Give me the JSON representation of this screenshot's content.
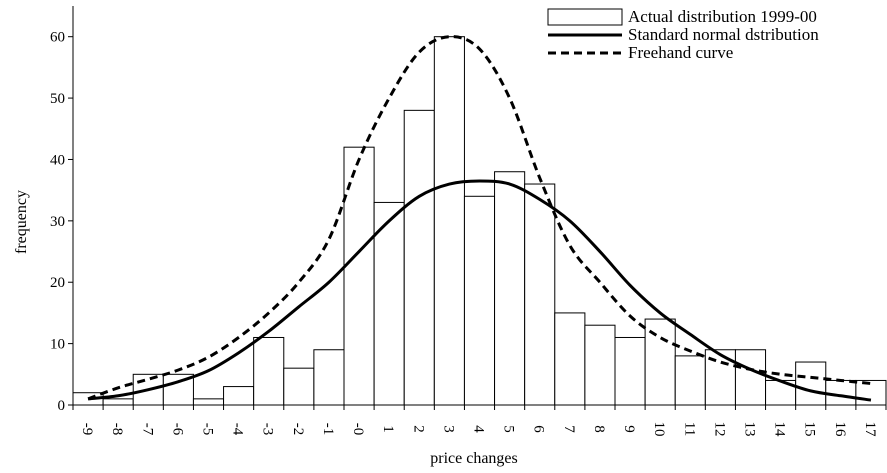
{
  "chart_data": {
    "type": "bar",
    "xlabel": "price changes",
    "ylabel": "frequency",
    "ylim": [
      0,
      65
    ],
    "yticks": [
      0,
      10,
      20,
      30,
      40,
      50,
      60
    ],
    "grid": false,
    "legend_position": "top-right",
    "categories": [
      "-9",
      "-8",
      "-7",
      "-6",
      "-5",
      "-4",
      "-3",
      "-2",
      "-1",
      "-0",
      "1",
      "2",
      "3",
      "4",
      "5",
      "6",
      "7",
      "8",
      "9",
      "10",
      "11",
      "12",
      "13",
      "14",
      "15",
      "16",
      "17"
    ],
    "series": [
      {
        "name": "Actual distribution 1999-00",
        "type": "bar",
        "values": [
          2,
          1,
          5,
          5,
          1,
          3,
          11,
          6,
          9,
          42,
          33,
          48,
          60,
          34,
          38,
          36,
          15,
          13,
          11,
          14,
          8,
          9,
          9,
          4,
          7,
          4,
          4
        ]
      },
      {
        "name": "Standard normal dstribution",
        "type": "line",
        "style": "solid",
        "values": [
          1,
          1.5,
          2.5,
          3.8,
          5.6,
          8.5,
          12,
          16,
          20,
          25,
          30,
          34,
          36,
          36.5,
          36,
          33.5,
          30,
          25,
          19.5,
          15,
          11.5,
          8.2,
          5.8,
          3.9,
          2.3,
          1.5,
          0.8
        ]
      },
      {
        "name": "Freehand curve",
        "type": "line",
        "style": "dashed",
        "values": [
          1,
          2.8,
          4.2,
          5.7,
          7.8,
          11,
          15,
          20,
          27,
          40,
          50,
          57.5,
          60,
          58,
          50,
          37,
          26,
          20,
          14.5,
          11,
          8.8,
          7,
          5.8,
          5,
          4.5,
          4,
          3.5
        ]
      }
    ]
  }
}
